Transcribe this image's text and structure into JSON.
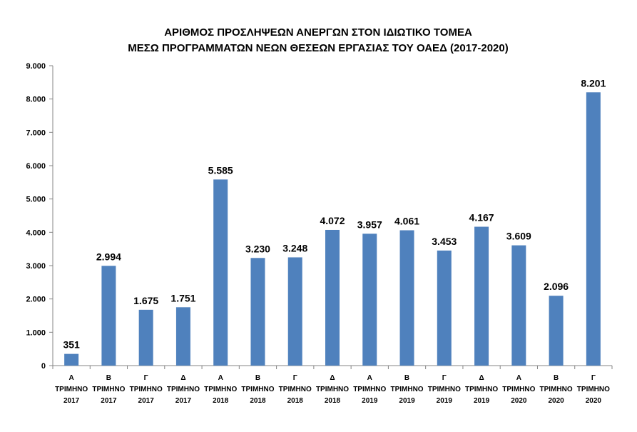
{
  "chart_data": {
    "type": "bar",
    "title_lines": [
      "ΑΡΙΘΜΟΣ ΠΡΟΣΛΗΨΕΩΝ ΑΝΕΡΓΩΝ ΣΤΟΝ ΙΔΙΩΤΙΚΟ ΤΟΜΕΑ",
      "ΜΕΣΩ ΠΡΟΓΡΑΜΜΑΤΩΝ ΝΕΩΝ ΘΕΣΕΩΝ ΕΡΓΑΣΙΑΣ ΤΟΥ ΟΑΕΔ (2017-2020)"
    ],
    "categories": [
      [
        "Α",
        "ΤΡΙΜΗΝΟ",
        "2017"
      ],
      [
        "Β",
        "ΤΡΙΜΗΝΟ",
        "2017"
      ],
      [
        "Γ",
        "ΤΡΙΜΗΝΟ",
        "2017"
      ],
      [
        "Δ",
        "ΤΡΙΜΗΝΟ",
        "2017"
      ],
      [
        "Α",
        "ΤΡΙΜΗΝΟ",
        "2018"
      ],
      [
        "Β",
        "ΤΡΙΜΗΝΟ",
        "2018"
      ],
      [
        "Γ",
        "ΤΡΙΜΗΝΟ",
        "2018"
      ],
      [
        "Δ",
        "ΤΡΙΜΗΝΟ",
        "2018"
      ],
      [
        "Α",
        "ΤΡΙΜΗΝΟ",
        "2019"
      ],
      [
        "Β",
        "ΤΡΙΜΗΝΟ",
        "2019"
      ],
      [
        "Γ",
        "ΤΡΙΜΗΝΟ",
        "2019"
      ],
      [
        "Δ",
        "ΤΡΙΜΗΝΟ",
        "2019"
      ],
      [
        "Α",
        "ΤΡΙΜΗΝΟ",
        "2020"
      ],
      [
        "Β",
        "ΤΡΙΜΗΝΟ",
        "2020"
      ],
      [
        "Γ",
        "ΤΡΙΜΗΝΟ",
        "2020"
      ]
    ],
    "values": [
      351,
      2994,
      1675,
      1751,
      5585,
      3230,
      3248,
      4072,
      3957,
      4061,
      3453,
      4167,
      3609,
      2096,
      8201
    ],
    "value_labels": [
      "351",
      "2.994",
      "1.675",
      "1.751",
      "5.585",
      "3.230",
      "3.248",
      "4.072",
      "3.957",
      "4.061",
      "3.453",
      "4.167",
      "3.609",
      "2.096",
      "8.201"
    ],
    "ylim": [
      0,
      9000
    ],
    "yticks": [
      0,
      1000,
      2000,
      3000,
      4000,
      5000,
      6000,
      7000,
      8000,
      9000
    ],
    "ytick_labels": [
      "0",
      "1.000",
      "2.000",
      "3.000",
      "4.000",
      "5.000",
      "6.000",
      "7.000",
      "8.000",
      "9.000"
    ],
    "grid": false,
    "legend": "none",
    "bar_color": "#4F81BD",
    "axis_color": "#868686"
  }
}
